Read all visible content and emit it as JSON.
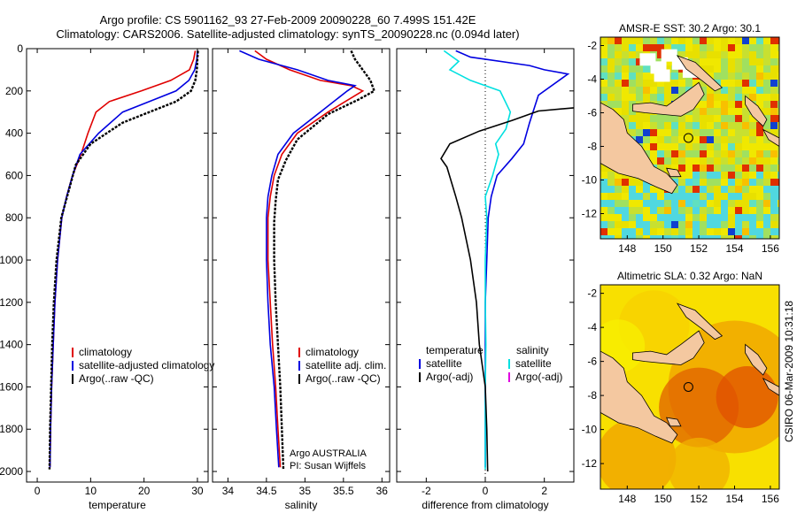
{
  "header": {
    "title_line1": "Argo profile: CS 5901162_93 27-Feb-2009 20090228_60 7.499S 151.42E",
    "title_line2": "Climatology: CARS2006. Satellite-adjusted climatology: synTS_20090228.nc (0.094d later)"
  },
  "side_label": "CSIRO 06-Mar-2009 10:31:18",
  "colors": {
    "red": "#e00000",
    "blue": "#0000e0",
    "black": "#000000",
    "cyan": "#00e0e0",
    "magenta": "#e000e0",
    "land": "#f4c8a0"
  },
  "chart_data": [
    {
      "id": "temperature",
      "type": "line",
      "xlabel": "temperature",
      "ylabel": "",
      "xlim": [
        -2,
        32
      ],
      "ylim": [
        2050,
        0
      ],
      "xticks": [
        0,
        10,
        20,
        30
      ],
      "xtick_labels": [
        "0",
        "10",
        "20",
        "30"
      ],
      "yticks": [
        0,
        200,
        400,
        600,
        800,
        1000,
        1200,
        1400,
        1600,
        1800,
        2000
      ],
      "ytick_labels": [
        "0",
        "200",
        "400",
        "600",
        "800",
        "1000",
        "1200",
        "1400",
        "1600",
        "1800",
        "2000"
      ],
      "legend": {
        "location": "lower-right",
        "entries": [
          "climatology",
          "satellite-adjusted climatology",
          "Argo(..raw -QC)"
        ]
      },
      "series": [
        {
          "name": "climatology",
          "color": "red",
          "x": [
            29.6,
            29.3,
            28.5,
            25.0,
            19.5,
            13.5,
            11.0,
            9.5,
            8.2,
            6.6,
            5.5,
            4.6,
            3.8,
            3.3,
            3.0,
            2.7,
            2.5,
            2.4
          ],
          "y": [
            10,
            50,
            100,
            150,
            200,
            250,
            300,
            400,
            500,
            600,
            700,
            800,
            1000,
            1200,
            1400,
            1600,
            1800,
            1980
          ]
        },
        {
          "name": "satellite-adjusted climatology",
          "color": "blue",
          "x": [
            30.0,
            29.9,
            29.5,
            28.4,
            26.0,
            21.0,
            16.0,
            11.5,
            8.0,
            6.6,
            5.5,
            4.6,
            3.8,
            3.3,
            3.0,
            2.7,
            2.5,
            2.4
          ],
          "y": [
            10,
            50,
            100,
            150,
            200,
            250,
            300,
            400,
            500,
            600,
            700,
            800,
            1000,
            1200,
            1400,
            1600,
            1800,
            1980
          ]
        },
        {
          "name": "Argo(..raw -QC)",
          "color": "black",
          "x": [
            30.1,
            30.0,
            29.9,
            29.6,
            28.8,
            26.0,
            22.0,
            16.0,
            10.0,
            7.2,
            5.6,
            4.5,
            3.6,
            3.1,
            2.8,
            2.6,
            2.4,
            2.3
          ],
          "y": [
            10,
            50,
            100,
            150,
            200,
            250,
            290,
            350,
            450,
            550,
            700,
            800,
            1000,
            1200,
            1400,
            1600,
            1800,
            1990
          ]
        }
      ]
    },
    {
      "id": "salinity",
      "type": "line",
      "xlabel": "salinity",
      "ylabel": "",
      "xlim": [
        33.8,
        36.1
      ],
      "ylim": [
        2050,
        0
      ],
      "xticks": [
        34,
        34.5,
        35,
        35.5,
        36
      ],
      "xtick_labels": [
        "34",
        "34.5",
        "35",
        "35.5",
        "36"
      ],
      "legend": {
        "location": "lower-right",
        "entries": [
          "climatology",
          "satellite adj. clim.",
          "Argo(..raw -QC)"
        ]
      },
      "annotation": [
        "Argo AUSTRALIA",
        "PI: Susan Wijffels"
      ],
      "series": [
        {
          "name": "climatology",
          "color": "red",
          "x": [
            34.35,
            34.5,
            34.8,
            35.2,
            35.6,
            35.75,
            35.3,
            34.9,
            34.7,
            34.6,
            34.55,
            34.52,
            34.52,
            34.55,
            34.58,
            34.62,
            34.65,
            34.68
          ],
          "y": [
            10,
            50,
            100,
            150,
            175,
            200,
            300,
            400,
            500,
            600,
            700,
            800,
            1000,
            1200,
            1400,
            1600,
            1800,
            1980
          ]
        },
        {
          "name": "satellite adj. clim.",
          "color": "blue",
          "x": [
            34.15,
            34.4,
            34.9,
            35.3,
            35.65,
            35.55,
            35.2,
            34.85,
            34.65,
            34.57,
            34.52,
            34.5,
            34.5,
            34.52,
            34.55,
            34.6,
            34.63,
            34.66
          ],
          "y": [
            10,
            50,
            100,
            150,
            175,
            200,
            300,
            400,
            500,
            600,
            700,
            800,
            1000,
            1200,
            1400,
            1600,
            1800,
            1980
          ]
        },
        {
          "name": "Argo(..raw -QC)",
          "color": "black",
          "x": [
            35.6,
            35.65,
            35.75,
            35.85,
            35.9,
            35.7,
            35.3,
            34.9,
            34.75,
            34.65,
            34.62,
            34.6,
            34.6,
            34.62,
            34.65,
            34.68,
            34.7,
            34.72
          ],
          "y": [
            10,
            50,
            100,
            150,
            200,
            240,
            310,
            430,
            530,
            620,
            720,
            820,
            1000,
            1200,
            1400,
            1600,
            1800,
            1990
          ]
        }
      ]
    },
    {
      "id": "difference",
      "type": "line",
      "xlabel": "difference from climatology",
      "ylabel": "",
      "xlim": [
        -3.0,
        3.0
      ],
      "ylim": [
        2050,
        0
      ],
      "xticks": [
        -2,
        0,
        2
      ],
      "xtick_labels": [
        "-2",
        "0",
        "2"
      ],
      "legend": {
        "location": "lower-center",
        "temperature_entries": [
          "temperature",
          "satellite",
          "Argo(-adj)"
        ],
        "salinity_entries": [
          "salinity",
          "satellite",
          "Argo(-adj)"
        ]
      },
      "series": [
        {
          "name": "temperature satellite",
          "color": "blue",
          "x": [
            -1.0,
            -0.5,
            1.5,
            2.0,
            2.8,
            1.8,
            1.5,
            1.3,
            0.9,
            0.4,
            0.2,
            0.1,
            0.05,
            0.0,
            0.0,
            0.0,
            0.0
          ],
          "y": [
            10,
            40,
            80,
            100,
            120,
            220,
            350,
            450,
            520,
            600,
            700,
            800,
            1000,
            1200,
            1400,
            1600,
            1980
          ]
        },
        {
          "name": "salinity satellite",
          "color": "cyan",
          "x": [
            -1.4,
            -0.9,
            -1.2,
            -0.5,
            0.5,
            0.85,
            0.7,
            0.35,
            0.45,
            0.25,
            0.0,
            0.05,
            0.0,
            0.0,
            0.02,
            0.0,
            0.0
          ],
          "y": [
            10,
            60,
            100,
            150,
            200,
            300,
            380,
            450,
            500,
            600,
            700,
            800,
            1000,
            1200,
            1400,
            1600,
            1990
          ]
        },
        {
          "name": "temperature Argo(-adj)",
          "color": "black",
          "x": [
            3.0,
            1.8,
            0.9,
            -0.2,
            -1.2,
            -1.5,
            -1.3,
            -1.0,
            -0.8,
            -0.5,
            -0.3,
            -0.2,
            0.0,
            0.05,
            0.08
          ],
          "y": [
            280,
            295,
            340,
            390,
            450,
            520,
            560,
            700,
            800,
            1000,
            1200,
            1400,
            1600,
            1800,
            2000
          ]
        }
      ]
    },
    {
      "id": "sst_map",
      "type": "heatmap",
      "title": "AMSR-E SST: 30.2 Argo: 30.1",
      "xlim": [
        146.5,
        156.5
      ],
      "ylim": [
        -13.5,
        -1.5
      ],
      "xticks": [
        148,
        150,
        152,
        154,
        156
      ],
      "xtick_labels": [
        "148",
        "150",
        "152",
        "154",
        "156"
      ],
      "yticks": [
        -2,
        -4,
        -6,
        -8,
        -10,
        -12
      ],
      "ytick_labels": [
        "-2",
        "-4",
        "-6",
        "-8",
        "-10",
        "-12"
      ],
      "argo_position": {
        "lon": 151.42,
        "lat": -7.499
      }
    },
    {
      "id": "sla_map",
      "type": "heatmap",
      "title": "Altimetric SLA: 0.32 Argo: NaN",
      "xlim": [
        146.5,
        156.5
      ],
      "ylim": [
        -13.5,
        -1.5
      ],
      "xticks": [
        148,
        150,
        152,
        154,
        156
      ],
      "xtick_labels": [
        "148",
        "150",
        "152",
        "154",
        "156"
      ],
      "yticks": [
        -2,
        -4,
        -6,
        -8,
        -10,
        -12
      ],
      "ytick_labels": [
        "-2",
        "-4",
        "-6",
        "-8",
        "-10",
        "-12"
      ],
      "argo_position": {
        "lon": 151.42,
        "lat": -7.499
      }
    }
  ]
}
